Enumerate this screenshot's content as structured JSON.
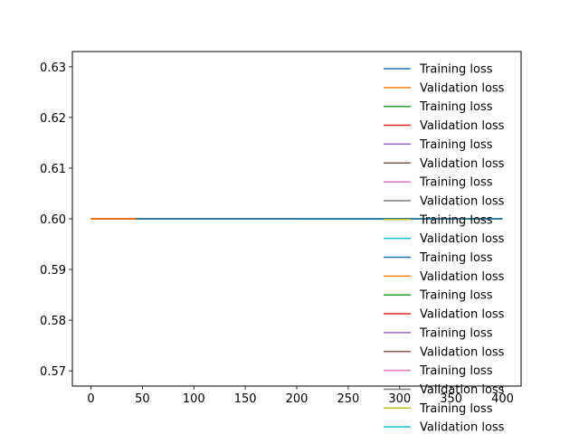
{
  "chart_data": {
    "type": "line",
    "title": "",
    "xlabel": "",
    "ylabel": "",
    "xlim": [
      -18,
      418
    ],
    "ylim": [
      0.567,
      0.633
    ],
    "xticks": [
      0,
      50,
      100,
      150,
      200,
      250,
      300,
      350,
      400
    ],
    "xtick_labels": [
      "0",
      "50",
      "100",
      "150",
      "200",
      "250",
      "300",
      "350",
      "400"
    ],
    "yticks": [
      0.57,
      0.58,
      0.59,
      0.6,
      0.61,
      0.62,
      0.63
    ],
    "ytick_labels": [
      "0.57",
      "0.58",
      "0.59",
      "0.60",
      "0.61",
      "0.62",
      "0.63"
    ],
    "grid": false,
    "legend_position": "right",
    "series": [
      {
        "name": "Training loss",
        "color": "#1f77b4",
        "x": [
          0,
          400
        ],
        "y": [
          0.6,
          0.6
        ]
      },
      {
        "name": "Validation loss",
        "color": "#ff7f0e",
        "x": [
          0,
          44
        ],
        "y": [
          0.6,
          0.6
        ]
      },
      {
        "name": "Training loss",
        "color": "#2ca02c",
        "x": [
          0,
          400
        ],
        "y": [
          0.6,
          0.6
        ]
      },
      {
        "name": "Validation loss",
        "color": "#d62728",
        "x": [
          0,
          44
        ],
        "y": [
          0.6,
          0.6
        ]
      },
      {
        "name": "Training loss",
        "color": "#9467bd",
        "x": [
          0,
          400
        ],
        "y": [
          0.6,
          0.6
        ]
      },
      {
        "name": "Validation loss",
        "color": "#8c564b",
        "x": [
          0,
          44
        ],
        "y": [
          0.6,
          0.6
        ]
      },
      {
        "name": "Training loss",
        "color": "#e377c2",
        "x": [
          0,
          400
        ],
        "y": [
          0.6,
          0.6
        ]
      },
      {
        "name": "Validation loss",
        "color": "#7f7f7f",
        "x": [
          0,
          44
        ],
        "y": [
          0.6,
          0.6
        ]
      },
      {
        "name": "Training loss",
        "color": "#bcbd22",
        "x": [
          0,
          400
        ],
        "y": [
          0.6,
          0.6
        ]
      },
      {
        "name": "Validation loss",
        "color": "#17becf",
        "x": [
          0,
          44
        ],
        "y": [
          0.6,
          0.6
        ]
      },
      {
        "name": "Training loss",
        "color": "#1f77b4",
        "x": [
          0,
          300
        ],
        "y": [
          0.6,
          0.6
        ]
      },
      {
        "name": "Validation loss",
        "color": "#ff7f0e",
        "x": [
          0,
          44
        ],
        "y": [
          0.6,
          0.6
        ]
      },
      {
        "name": "Training loss",
        "color": "#2ca02c",
        "x": [
          0,
          300
        ],
        "y": [
          0.6,
          0.6
        ]
      },
      {
        "name": "Validation loss",
        "color": "#d62728",
        "x": [
          0,
          44
        ],
        "y": [
          0.6,
          0.6
        ]
      },
      {
        "name": "Training loss",
        "color": "#9467bd",
        "x": [
          0,
          300
        ],
        "y": [
          0.6,
          0.6
        ]
      },
      {
        "name": "Validation loss",
        "color": "#8c564b",
        "x": [
          0,
          44
        ],
        "y": [
          0.6,
          0.6
        ]
      },
      {
        "name": "Training loss",
        "color": "#e377c2",
        "x": [
          0,
          200
        ],
        "y": [
          0.6,
          0.6
        ]
      },
      {
        "name": "Validation loss",
        "color": "#7f7f7f",
        "x": [
          0,
          44
        ],
        "y": [
          0.6,
          0.6
        ]
      },
      {
        "name": "Training loss",
        "color": "#bcbd22",
        "x": [
          0,
          200
        ],
        "y": [
          0.6,
          0.6
        ]
      },
      {
        "name": "Validation loss",
        "color": "#17becf",
        "x": [
          0,
          44
        ],
        "y": [
          0.6,
          0.6
        ]
      }
    ],
    "draw_order": [
      8,
      6,
      4,
      2,
      0,
      18,
      16,
      14,
      12,
      10,
      19,
      17,
      15,
      13,
      11,
      9,
      7,
      5,
      3,
      1
    ]
  }
}
